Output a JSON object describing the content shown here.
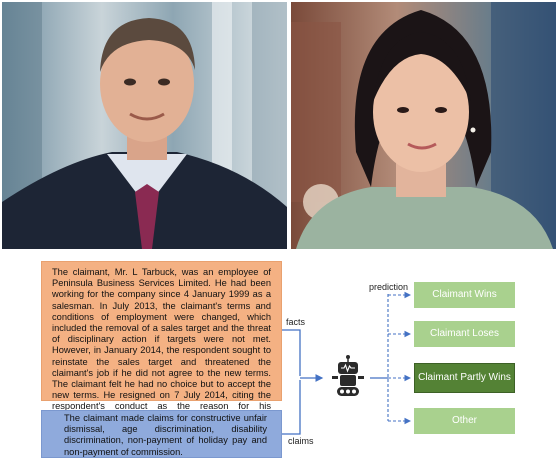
{
  "facts": {
    "label": "facts",
    "text": "The claimant, Mr. L Tarbuck, was an employee of Peninsula Business Services Limited. He had been working for the company since 4 January 1999 as a salesman. In July 2013, the claimant's terms and conditions of employment were changed, which included the removal of a sales target and the threat of disciplinary action if targets were not met. However, in January 2014, the respondent sought to reinstate the sales target and threatened the claimant's job if he did not agree to the new terms. The claimant felt he had no choice but to accept the new terms. He resigned on 7 July 2014, citing the respondent's conduct as the reason for his resignation."
  },
  "claims": {
    "label": "claims",
    "text": "The claimant made claims for constructive unfair dismissal, age discrimination, disability discrimination, non-payment of holiday pay and non-payment of commission."
  },
  "prediction_label": "prediction",
  "outcomes": {
    "win": "Claimant Wins",
    "lose": "Claimant Loses",
    "partly": "Claimant Partly Wins",
    "other": "Other"
  },
  "colors": {
    "facts_fill": "#f4b183",
    "claims_fill": "#8faadc",
    "outcome_fill": "#a9d18e",
    "selected_outcome_fill": "#548235",
    "connector": "#4472c4"
  },
  "icons": [
    "robot-icon"
  ]
}
